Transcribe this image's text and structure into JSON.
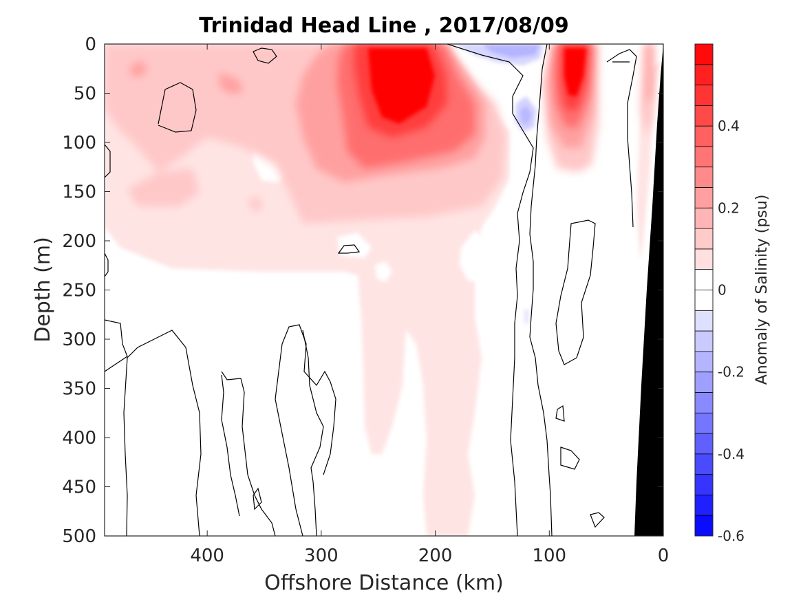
{
  "chart_data": {
    "type": "contour",
    "title": "Trinidad Head Line , 2017/08/09",
    "xlabel": "Offshore Distance (km)",
    "ylabel": "Depth (m)",
    "xlim": [
      490,
      0
    ],
    "x_reversed": true,
    "ylim": [
      500,
      0
    ],
    "y_reversed": true,
    "xticks": [
      400,
      300,
      200,
      100,
      0
    ],
    "yticks": [
      0,
      50,
      100,
      150,
      200,
      250,
      300,
      350,
      400,
      450,
      500
    ],
    "colorbar": {
      "label": "Anomaly of Salinity (psu)",
      "range": [
        -0.6,
        0.6
      ],
      "ticks": [
        "0.4",
        "0.2",
        "0",
        "-0.2",
        "-0.4",
        "-0.6"
      ],
      "tick_values": [
        0.4,
        0.2,
        0,
        -0.2,
        -0.4,
        -0.6
      ],
      "levels": 24,
      "colormap": "blue-white-red",
      "colors": {
        "negative": "#0000ff",
        "zero": "#ffffff",
        "positive": "#ff0000"
      }
    },
    "features": [
      {
        "name": "positive anomaly core",
        "x": 235,
        "y": 60,
        "value": 0.58
      },
      {
        "name": "nearshore positive anomaly",
        "x": 80,
        "y": 40,
        "value": 0.58
      },
      {
        "name": "surface negative anomaly",
        "x": 140,
        "y": 5,
        "value": -0.12
      },
      {
        "name": "subsurface negative anomaly",
        "x": 120,
        "y": 75,
        "value": -0.1
      },
      {
        "name": "deep positive tongue",
        "x": 195,
        "y": 430,
        "value": 0.07
      },
      {
        "name": "deep positive tongue",
        "x": 255,
        "y": 380,
        "value": 0.07
      },
      {
        "name": "weak positive blob",
        "x": 420,
        "y": 140,
        "value": 0.2
      },
      {
        "name": "weak positive blob",
        "x": 480,
        "y": 20,
        "value": 0.2
      },
      {
        "name": "weak positive blob",
        "x": 315,
        "y": 80,
        "value": 0.2
      }
    ],
    "bathymetry": {
      "color": "#000000"
    }
  }
}
